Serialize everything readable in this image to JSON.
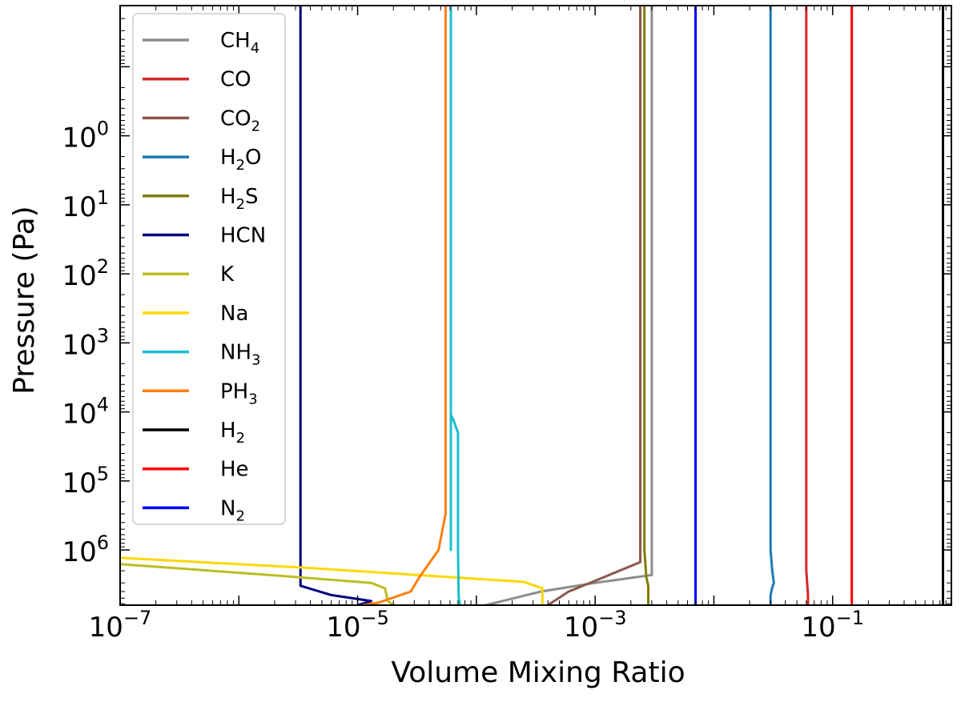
{
  "chart_data": {
    "type": "line",
    "title": "",
    "xlabel": "Volume Mixing Ratio",
    "ylabel": "Pressure (Pa)",
    "x_scale": "log",
    "y_scale": "log",
    "y_inverted": true,
    "xlim": [
      1e-07,
      1.0
    ],
    "ylim": [
      6300000.0,
      0.013
    ],
    "x_ticks": [
      {
        "value": 1e-07,
        "base": "10",
        "exp": "−7"
      },
      {
        "value": 1e-05,
        "base": "10",
        "exp": "−5"
      },
      {
        "value": 0.001,
        "base": "10",
        "exp": "−3"
      },
      {
        "value": 0.1,
        "base": "10",
        "exp": "−1"
      }
    ],
    "y_ticks": [
      {
        "value": 1,
        "base": "10",
        "exp": "0"
      },
      {
        "value": 10,
        "base": "10",
        "exp": "1"
      },
      {
        "value": 100,
        "base": "10",
        "exp": "2"
      },
      {
        "value": 1000,
        "base": "10",
        "exp": "3"
      },
      {
        "value": 10000,
        "base": "10",
        "exp": "4"
      },
      {
        "value": 100000,
        "base": "10",
        "exp": "5"
      },
      {
        "value": 1000000,
        "base": "10",
        "exp": "6"
      }
    ],
    "grid": false,
    "legend_position": "upper-left",
    "series": [
      {
        "legend": [
          "CH",
          "4",
          ""
        ],
        "color": "#8c8c8c",
        "x": [
          0.003,
          0.003,
          0.003,
          0.001,
          0.00035,
          0.00012
        ],
        "y": [
          0.013,
          1000000.0,
          2300000.0,
          3000000.0,
          4000000.0,
          6300000.0
        ]
      },
      {
        "legend": [
          "CO",
          "",
          ""
        ],
        "color": "#d62728",
        "x": [
          0.06,
          0.06,
          0.06,
          0.061,
          0.062,
          0.062
        ],
        "y": [
          0.013,
          1000000.0,
          2000000.0,
          3000000.0,
          4500000.0,
          6300000.0
        ]
      },
      {
        "legend": [
          "CO",
          "2",
          ""
        ],
        "color": "#8c564b",
        "x": [
          0.0024,
          0.0024,
          0.0024,
          0.001,
          0.0006,
          0.0004
        ],
        "y": [
          0.013,
          1000000.0,
          1500000.0,
          2800000.0,
          4000000.0,
          6300000.0
        ]
      },
      {
        "legend": [
          "H",
          "2",
          "O"
        ],
        "color": "#1f77b4",
        "x": [
          0.03,
          0.03,
          0.031,
          0.032,
          0.031,
          0.03,
          0.03
        ],
        "y": [
          0.013,
          1000000.0,
          2000000.0,
          3000000.0,
          3500000.0,
          4500000.0,
          6300000.0
        ]
      },
      {
        "legend": [
          "H",
          "2",
          "S"
        ],
        "color": "#7f7f00",
        "x": [
          0.0026,
          0.0026,
          0.0027,
          0.0028,
          0.0028
        ],
        "y": [
          0.013,
          1000000.0,
          2500000.0,
          3300000.0,
          6300000.0
        ]
      },
      {
        "legend": [
          "HCN",
          "",
          ""
        ],
        "color": "#000080",
        "x": [
          3.3e-06,
          3.3e-06,
          3.3e-06,
          6e-06,
          1.3e-05,
          1e-05
        ],
        "y": [
          0.013,
          1000000.0,
          3300000.0,
          4500000.0,
          5500000.0,
          6300000.0
        ]
      },
      {
        "legend": [
          "K",
          "",
          ""
        ],
        "color": "#bcbd22",
        "x": [
          1e-07,
          2.5e-06,
          1.3e-05,
          1.7e-05,
          1.8e-05,
          2e-05
        ],
        "y": [
          1600000.0,
          2400000.0,
          3000000.0,
          3600000.0,
          5500000.0,
          6300000.0
        ]
      },
      {
        "legend": [
          "Na",
          "",
          ""
        ],
        "color": "#ffd700",
        "x": [
          1e-07,
          3.5e-06,
          0.00025,
          0.00036,
          0.00036
        ],
        "y": [
          1300000.0,
          1800000.0,
          2900000.0,
          3600000.0,
          6300000.0
        ]
      },
      {
        "legend": [
          "NH",
          "3",
          ""
        ],
        "color": "#17becf",
        "x": [
          6.1e-05,
          6.1e-05,
          6.1e-05,
          6.5e-05,
          7e-05,
          7e-05,
          7.1e-05,
          7.3e-05
        ],
        "y": [
          0.013,
          1000000.0,
          11000.0,
          14000.0,
          20000.0,
          1000000.0,
          5000000.0,
          6300000.0
        ]
      },
      {
        "legend": [
          "PH",
          "3",
          ""
        ],
        "color": "#ff7f0e",
        "x": [
          5.5e-05,
          5.5e-05,
          5.5e-05,
          4.8e-05,
          3.3e-05,
          2.8e-05,
          1.5e-05,
          1.1e-05
        ],
        "y": [
          0.013,
          100000.0,
          300000.0,
          1000000.0,
          2500000.0,
          4000000.0,
          5800000.0,
          6300000.0
        ]
      },
      {
        "legend": [
          "H",
          "2",
          ""
        ],
        "color": "#000000",
        "x": [
          0.85,
          0.85
        ],
        "y": [
          0.013,
          6300000.0
        ]
      },
      {
        "legend": [
          "He",
          "",
          ""
        ],
        "color": "#ff0000",
        "x": [
          0.145,
          0.145
        ],
        "y": [
          0.013,
          6300000.0
        ]
      },
      {
        "legend": [
          "N",
          "2",
          ""
        ],
        "color": "#0000ff",
        "x": [
          0.007,
          0.007
        ],
        "y": [
          0.013,
          6300000.0
        ]
      }
    ]
  }
}
